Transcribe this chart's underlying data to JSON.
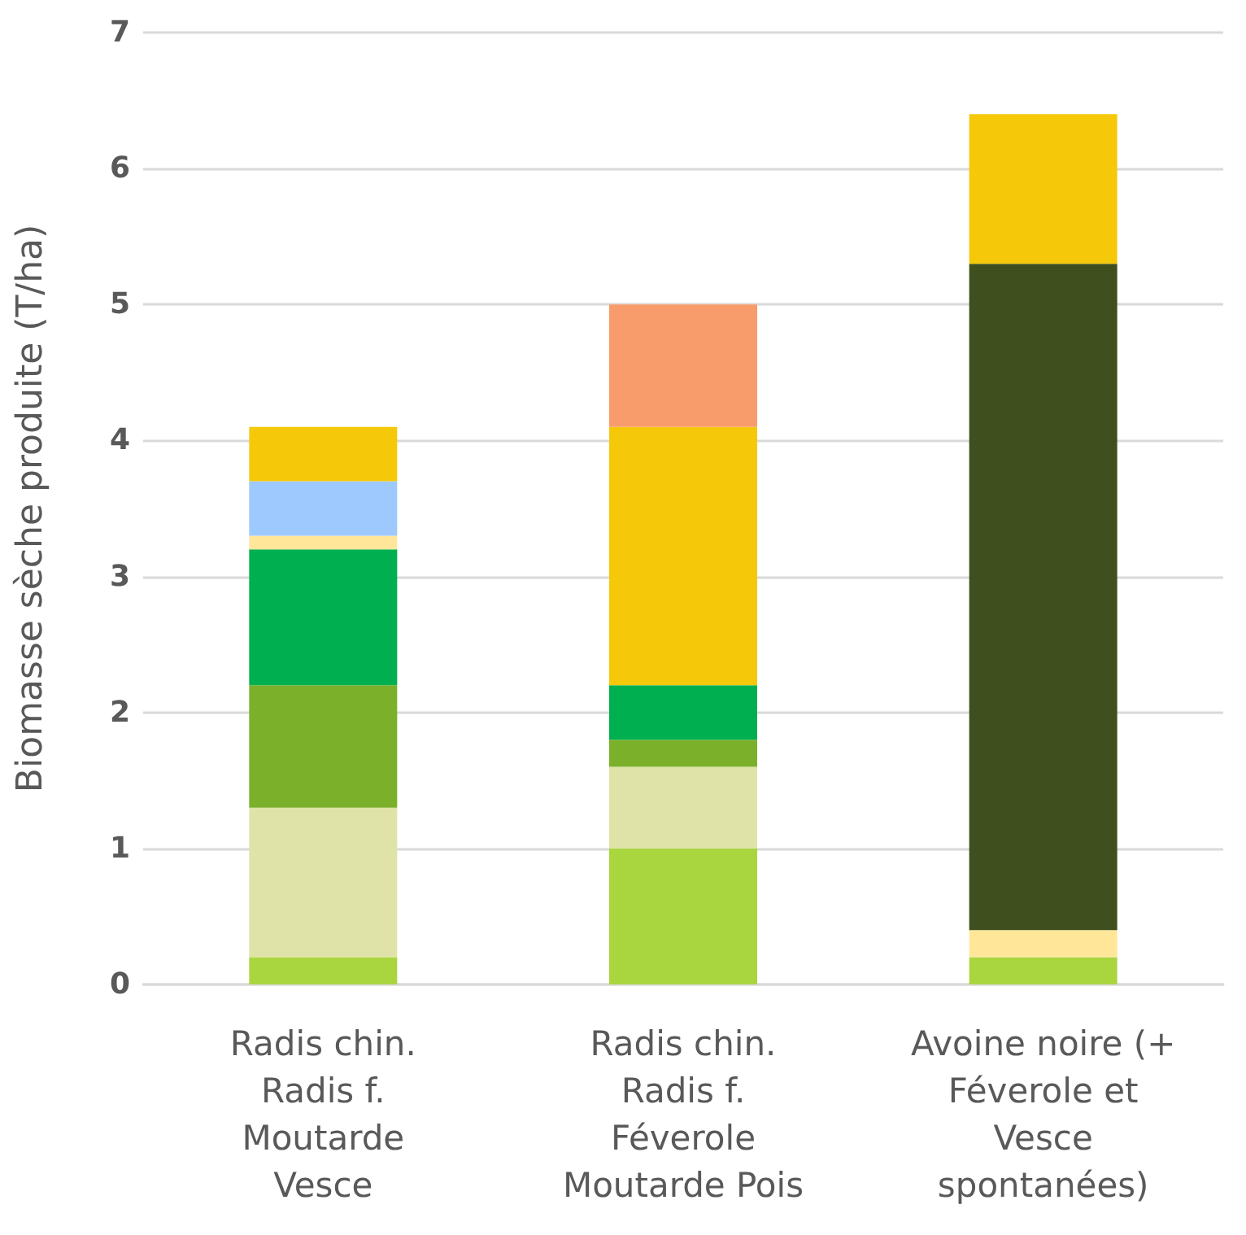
{
  "chart_data": {
    "type": "bar",
    "stacked": true,
    "ylabel": "Biomasse sèche produite (T/ha)",
    "categories": [
      "Radis chin.\nRadis f.\nMoutarde\nVesce",
      "Radis chin.\nRadis f.\nFéverole\nMoutarde Pois",
      "Avoine noire (+\nFéverole et\nVesce\nspontanées)"
    ],
    "series": [
      {
        "color": "#a9d63f",
        "values": [
          0.2,
          1.0,
          0.2
        ]
      },
      {
        "color": "#dfe3a8",
        "values": [
          1.1,
          0.6,
          null
        ]
      },
      {
        "color": "#7bb12a",
        "values": [
          0.9,
          0.2,
          null
        ]
      },
      {
        "color": "#00b050",
        "values": [
          1.0,
          0.4,
          null
        ]
      },
      {
        "color": "#ffe699",
        "values": [
          0.1,
          null,
          0.2
        ]
      },
      {
        "color": "#9dc9ff",
        "values": [
          0.4,
          null,
          null
        ]
      },
      {
        "color": "#3f4f1d",
        "values": [
          null,
          null,
          4.9
        ]
      },
      {
        "color": "#f5c80a",
        "values": [
          0.4,
          1.9,
          1.1
        ]
      },
      {
        "color": "#f89c6c",
        "values": [
          null,
          0.9,
          null
        ]
      }
    ],
    "ylim": [
      0,
      7
    ],
    "yticks": [
      0,
      1,
      2,
      3,
      4,
      5,
      6,
      7
    ],
    "grid": "y"
  }
}
